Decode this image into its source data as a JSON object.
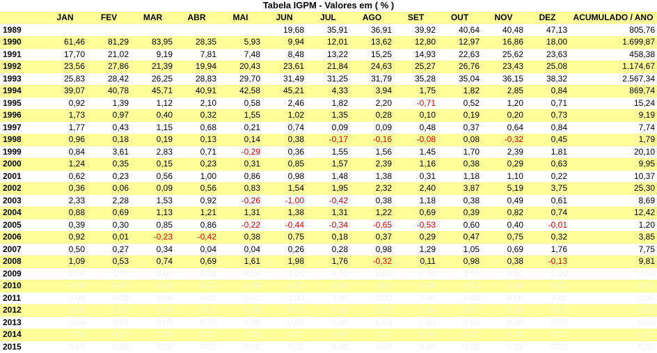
{
  "title": "Tabela IGPM - Valores em ( % )",
  "columns": [
    "",
    "JAN",
    "FEV",
    "MAR",
    "ABR",
    "MAI",
    "JUN",
    "JUL",
    "AGO",
    "SET",
    "OUT",
    "NOV",
    "DEZ",
    "ACUMULADO / ANO"
  ],
  "rows": [
    {
      "year": "1989",
      "values": [
        "",
        "",
        "",
        "",
        "",
        "19,68",
        "35,91",
        "36,91",
        "39,92",
        "40,64",
        "40,48",
        "47,13"
      ],
      "total": "805,76"
    },
    {
      "year": "1990",
      "values": [
        "61,46",
        "81,29",
        "83,95",
        "28,35",
        "5,93",
        "9,94",
        "12,01",
        "13,62",
        "12,80",
        "12,97",
        "16,86",
        "18,00"
      ],
      "total": "1.699,87"
    },
    {
      "year": "1991",
      "values": [
        "17,70",
        "21,02",
        "9,19",
        "7,81",
        "7,48",
        "8,48",
        "13,22",
        "15,25",
        "14,93",
        "22,63",
        "25,62",
        "23,63"
      ],
      "total": "458,38"
    },
    {
      "year": "1992",
      "values": [
        "23,56",
        "27,86",
        "21,39",
        "19,94",
        "20,43",
        "23,61",
        "21,84",
        "24,63",
        "25,27",
        "26,76",
        "23,43",
        "25,08"
      ],
      "total": "1.174,67"
    },
    {
      "year": "1993",
      "values": [
        "25,83",
        "28,42",
        "26,25",
        "28,83",
        "29,70",
        "31,49",
        "31,25",
        "31,79",
        "35,28",
        "35,04",
        "36,15",
        "38,32"
      ],
      "total": "2.567,34"
    },
    {
      "year": "1994",
      "values": [
        "39,07",
        "40,78",
        "45,71",
        "40,91",
        "42,58",
        "45,21",
        "4,33",
        "3,94",
        "1,75",
        "1,82",
        "2,85",
        "0,84"
      ],
      "total": "869,74"
    },
    {
      "year": "1995",
      "values": [
        "0,92",
        "1,39",
        "1,12",
        "2,10",
        "0,58",
        "2,46",
        "1,82",
        "2,20",
        "-0,71",
        "0,52",
        "1,20",
        "0,71"
      ],
      "total": "15,24"
    },
    {
      "year": "1996",
      "values": [
        "1,73",
        "0,97",
        "0,40",
        "0,32",
        "1,55",
        "1,02",
        "1,35",
        "0,28",
        "0,10",
        "0,19",
        "0,20",
        "0,73"
      ],
      "total": "9,19"
    },
    {
      "year": "1997",
      "values": [
        "1,77",
        "0,43",
        "1,15",
        "0,68",
        "0,21",
        "0,74",
        "0,09",
        "0,09",
        "0,48",
        "0,37",
        "0,64",
        "0,84"
      ],
      "total": "7,74"
    },
    {
      "year": "1998",
      "values": [
        "0,96",
        "0,18",
        "0,19",
        "0,13",
        "0,14",
        "0,38",
        "-0,17",
        "-0,16",
        "-0,08",
        "0,08",
        "-0,32",
        "0,45"
      ],
      "total": "1,79"
    },
    {
      "year": "1999",
      "values": [
        "0,84",
        "3,61",
        "2,83",
        "0,71",
        "-0,29",
        "0,36",
        "1,55",
        "1,56",
        "1,45",
        "1,70",
        "2,39",
        "1,81"
      ],
      "total": "20,10"
    },
    {
      "year": "2000",
      "values": [
        "1,24",
        "0,35",
        "0,15",
        "0,23",
        "0,31",
        "0,85",
        "1,57",
        "2,39",
        "1,16",
        "0,38",
        "0,29",
        "0,63"
      ],
      "total": "9,95"
    },
    {
      "year": "2001",
      "values": [
        "0,62",
        "0,23",
        "0,56",
        "1,00",
        "0,86",
        "0,98",
        "1,48",
        "1,38",
        "0,31",
        "1,18",
        "1,10",
        "0,22"
      ],
      "total": "10,37"
    },
    {
      "year": "2002",
      "values": [
        "0,36",
        "0,06",
        "0,09",
        "0,56",
        "0,83",
        "1,54",
        "1,95",
        "2,32",
        "2,40",
        "3,87",
        "5,19",
        "3,75"
      ],
      "total": "25,30"
    },
    {
      "year": "2003",
      "values": [
        "2,33",
        "2,28",
        "1,53",
        "0,92",
        "-0,26",
        "-1,00",
        "-0,42",
        "0,38",
        "1,18",
        "0,38",
        "0,49",
        "0,61"
      ],
      "total": "8,69"
    },
    {
      "year": "2004",
      "values": [
        "0,88",
        "0,69",
        "1,13",
        "1,21",
        "1,31",
        "1,38",
        "1,31",
        "1,22",
        "0,69",
        "0,39",
        "0,82",
        "0,74"
      ],
      "total": "12,42"
    },
    {
      "year": "2005",
      "values": [
        "0,39",
        "0,30",
        "0,85",
        "0,86",
        "-0,22",
        "-0,44",
        "-0,34",
        "-0,65",
        "-0,53",
        "0,60",
        "0,40",
        "-0,01"
      ],
      "total": "1,20"
    },
    {
      "year": "2006",
      "values": [
        "0,92",
        "0,01",
        "-0,23",
        "-0,42",
        "0,38",
        "0,75",
        "0,18",
        "0,37",
        "0,29",
        "0,47",
        "0,75",
        "0,32"
      ],
      "total": "3,85"
    },
    {
      "year": "2007",
      "values": [
        "0,50",
        "0,27",
        "0,34",
        "0,04",
        "0,04",
        "0,26",
        "0,28",
        "0,98",
        "1,29",
        "1,05",
        "0,69",
        "1,76"
      ],
      "total": "7,75"
    },
    {
      "year": "2008",
      "values": [
        "1,09",
        "0,53",
        "0,74",
        "0,69",
        "1,61",
        "1,98",
        "1,76",
        "-0,32",
        "0,11",
        "0,98",
        "0,38",
        "-0,13"
      ],
      "total": "9,81"
    },
    {
      "year": "2009",
      "values": [
        "0,00",
        "0,00",
        "0,00",
        "0,00",
        "0,00",
        "0,00",
        "0,00",
        "0,00",
        "0,00",
        "0,00",
        "0,00",
        "0,00"
      ],
      "total": "0,00"
    },
    {
      "year": "2010",
      "values": [
        "0,00",
        "0,00",
        "0,00",
        "0,00",
        "0,00",
        "0,00",
        "0,00",
        "0,00",
        "0,00",
        "0,00",
        "0,00",
        "0,00"
      ],
      "total": "0,00"
    },
    {
      "year": "2011",
      "values": [
        "0,00",
        "0,00",
        "0,00",
        "0,00",
        "0,00",
        "0,00",
        "0,00",
        "0,00",
        "0,00",
        "0,00",
        "0,00",
        "0,00"
      ],
      "total": "0,00"
    },
    {
      "year": "2012",
      "values": [
        "0,00",
        "0,00",
        "0,00",
        "0,00",
        "0,00",
        "0,00",
        "0,00",
        "0,00",
        "0,00",
        "0,00",
        "0,00",
        "0,00"
      ],
      "total": "0,00"
    },
    {
      "year": "2013",
      "values": [
        "0,00",
        "0,00",
        "0,00",
        "0,00",
        "0,00",
        "0,00",
        "0,00",
        "0,00",
        "0,00",
        "0,00",
        "0,00",
        "0,00"
      ],
      "total": "0,00"
    },
    {
      "year": "2014",
      "values": [
        "0,00",
        "0,00",
        "0,00",
        "0,00",
        "0,00",
        "0,00",
        "0,00",
        "0,00",
        "0,00",
        "0,00",
        "0,00",
        "0,00"
      ],
      "total": "0,00"
    },
    {
      "year": "2015",
      "values": [
        "0,00",
        "0,00",
        "0,00",
        "0,00",
        "0,00",
        "0,00",
        "0,00",
        "0,00",
        "0,00",
        "0,00",
        "0,00",
        "0,00"
      ],
      "total": "0,00"
    }
  ],
  "colors": {
    "band": "#ffff99",
    "negative": "#e00000"
  }
}
